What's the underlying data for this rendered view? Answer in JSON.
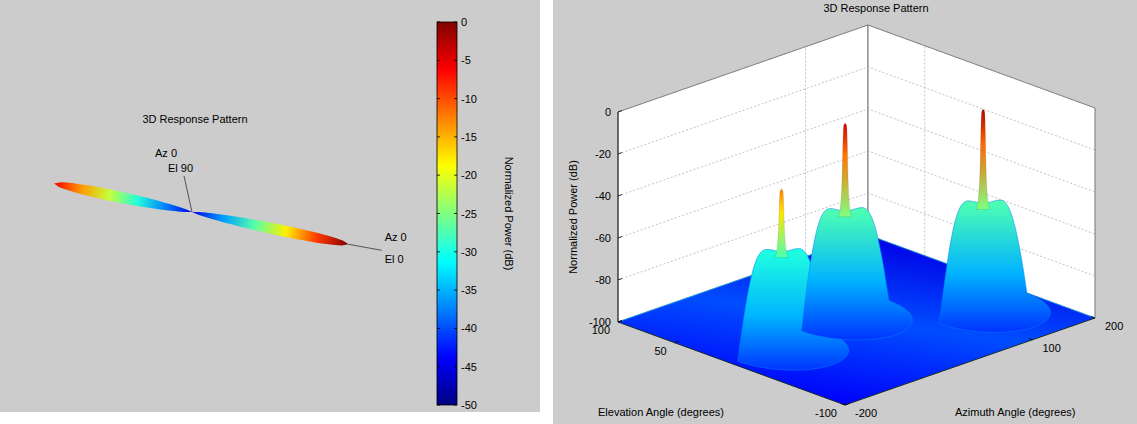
{
  "chart_data": [
    {
      "type": "3d_pattern",
      "title": "3D Response Pattern",
      "lobes": {
        "azimuth": [
          0,
          180
        ],
        "power": [
          0,
          -6
        ]
      },
      "annotations": [
        [
          "Az 0",
          "El 90"
        ],
        [
          "Az 0",
          "El 0"
        ]
      ],
      "colorbar": {
        "label": "Normalized Power (dB)",
        "range": [
          -50,
          0
        ],
        "ticks": [
          0,
          -5,
          -10,
          -15,
          -20,
          -25,
          -30,
          -35,
          -40,
          -45,
          -50
        ]
      }
    },
    {
      "type": "surface",
      "title": "3D Response Pattern",
      "xlabel": "Azimuth Angle (degrees)",
      "ylabel": "Elevation Angle (degrees)",
      "zlabel": "Normalized Power (dB)",
      "xlim": [
        -200,
        200
      ],
      "xticks": [
        -200,
        100,
        200
      ],
      "ylim": [
        -100,
        100
      ],
      "yticks": [
        -100,
        50,
        100
      ],
      "zlim": [
        -100,
        0
      ],
      "zticks": [
        0,
        -20,
        -40,
        -60,
        -80,
        -100
      ],
      "grid": true,
      "peaks": {
        "azimuth": [
          -120,
          0,
          130
        ],
        "elevation": [
          0,
          10,
          -40
        ],
        "power": [
          -25,
          -8,
          -5
        ],
        "sidelobe_power": [
          -55,
          -50,
          -50
        ]
      }
    }
  ]
}
